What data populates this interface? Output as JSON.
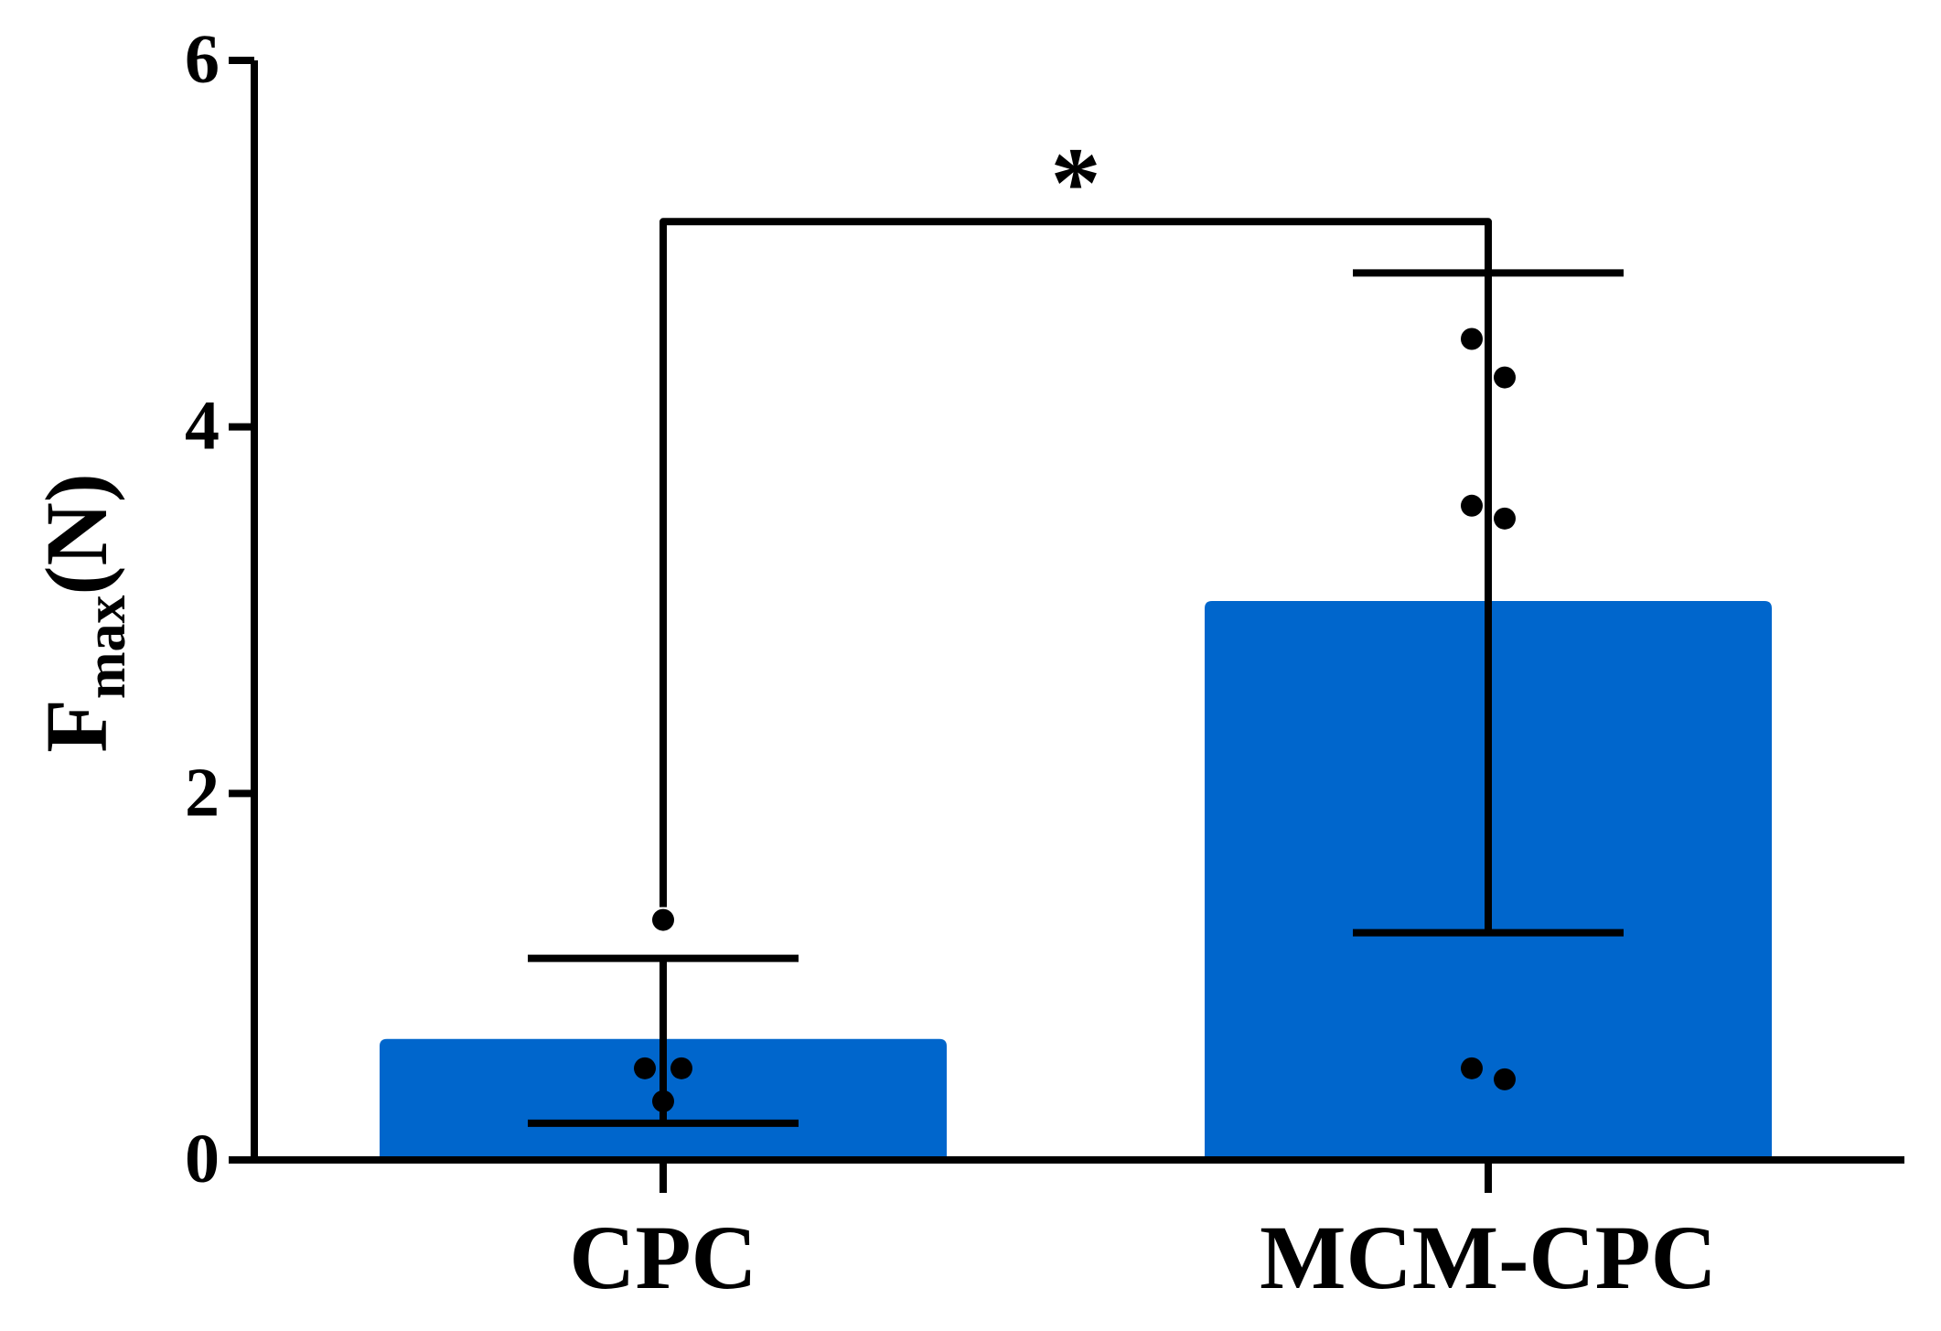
{
  "chart_data": {
    "type": "bar",
    "ylabel_main": "F",
    "ylabel_sub": "max",
    "ylabel_unit": "(N)",
    "categories": [
      "CPC",
      "MCM-CPC"
    ],
    "values": [
      0.66,
      3.05
    ],
    "error_low": [
      0.2,
      1.24
    ],
    "error_high": [
      1.1,
      4.84
    ],
    "points": [
      [
        0.5,
        0.5,
        0.32,
        1.31
      ],
      [
        4.48,
        4.27,
        3.57,
        3.5,
        0.5,
        0.44
      ]
    ],
    "yticks": [
      0,
      2,
      4,
      6
    ],
    "ylim": [
      0,
      6
    ],
    "bar_color": "#0066cc",
    "significance": {
      "label": "*",
      "from": "CPC",
      "to": "MCM-CPC",
      "y": 5.12
    }
  }
}
